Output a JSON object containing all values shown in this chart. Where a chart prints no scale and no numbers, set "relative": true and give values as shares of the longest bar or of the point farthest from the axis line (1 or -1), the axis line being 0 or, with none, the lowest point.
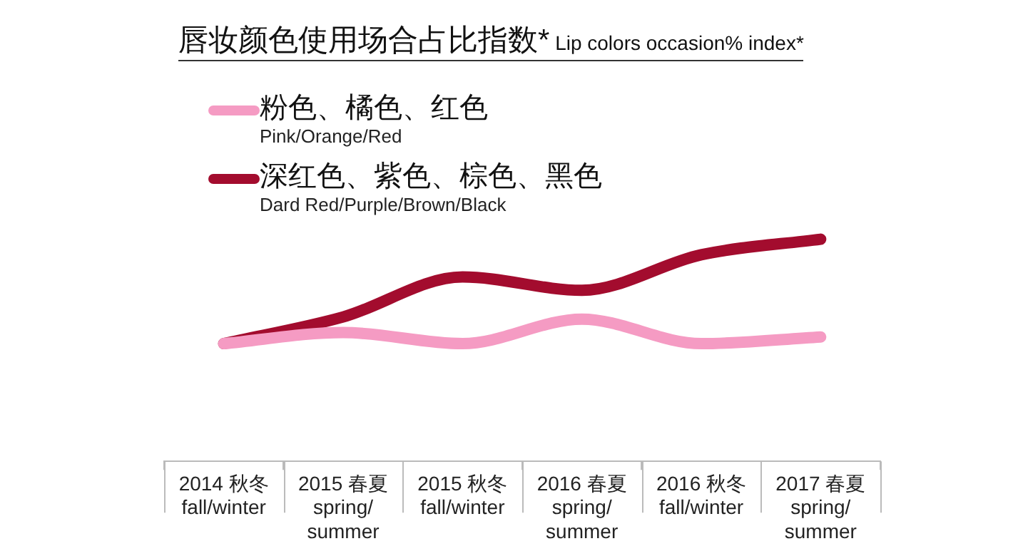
{
  "chart_data": {
    "type": "line",
    "title": "唇妆颜色使用场合占比指数*",
    "subtitle": "Lip colors occasion% index*",
    "categories": [
      "2014 秋冬\nfall/winter",
      "2015 春夏\nspring/\nsummer",
      "2015 秋冬\nfall/winter",
      "2016 春夏\nspring/\nsummer",
      "2016 秋冬\nfall/winter",
      "2017 春夏\nspring/\nsummer"
    ],
    "relative": true,
    "legend": "top left",
    "marker": "none",
    "series": [
      {
        "name": "粉色、橘色、红色\nPink/Orange/Red",
        "color": "#f59bc3",
        "values": [
          0.53,
          0.58,
          0.53,
          0.64,
          0.53,
          0.56
        ]
      },
      {
        "name": "深红色、紫色、棕色、黑色\nDard Red/Purple/Brown/Black",
        "color": "#a30c2e",
        "values": [
          0.53,
          0.65,
          0.83,
          0.77,
          0.93,
          1
        ]
      }
    ]
  }
}
